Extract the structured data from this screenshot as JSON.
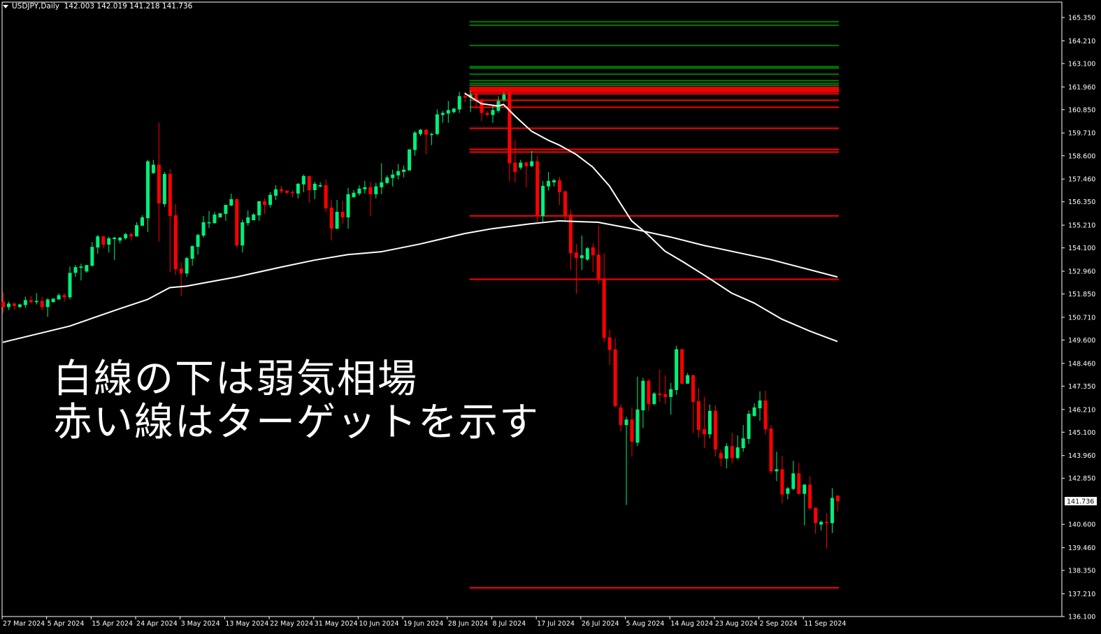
{
  "header": {
    "symbol": "USDJPY,Daily",
    "ohlc_text": "142.003 142.019 141.218 141.736"
  },
  "overlay": {
    "line1": "白線の下は弱気相場",
    "line2": "赤い線はターゲットを示す"
  },
  "colors": {
    "background": "#000000",
    "bull": "#00f07a",
    "bear": "#ff0000",
    "ma": "#ffffff",
    "level_green": "#007a00",
    "level_red": "#ff0000",
    "axis": "#ffffff"
  },
  "chart_data": {
    "type": "candlestick",
    "symbol": "USDJPY",
    "timeframe": "Daily",
    "ylim": [
      136.1,
      165.35
    ],
    "grid": false,
    "current_price": "141.736",
    "y_tick_labels": [
      "165.350",
      "164.210",
      "163.100",
      "161.960",
      "160.850",
      "159.710",
      "158.600",
      "157.460",
      "156.350",
      "155.210",
      "154.100",
      "152.960",
      "151.850",
      "150.710",
      "149.600",
      "148.460",
      "147.350",
      "146.210",
      "145.100",
      "143.960",
      "142.850",
      "140.600",
      "139.460",
      "138.350",
      "137.210",
      "136.100"
    ],
    "x_tick_labels": [
      "27 Mar 2024",
      "5 Apr 2024",
      "15 Apr 2024",
      "24 Apr 2024",
      "3 May 2024",
      "13 May 2024",
      "22 May 2024",
      "31 May 2024",
      "10 Jun 2024",
      "19 Jun 2024",
      "28 Jun 2024",
      "8 Jul 2024",
      "17 Jul 2024",
      "26 Jul 2024",
      "5 Aug 2024",
      "14 Aug 2024",
      "23 Aug 2024",
      "2 Sep 2024",
      "11 Sep 2024"
    ],
    "x_tick_every_bars": 8,
    "ohlc": [
      [
        151.48,
        151.92,
        150.93,
        151.21
      ],
      [
        151.21,
        151.48,
        151.07,
        151.38
      ],
      [
        151.38,
        151.44,
        151.07,
        151.27
      ],
      [
        151.21,
        151.38,
        151.17,
        151.34
      ],
      [
        151.31,
        151.72,
        151.17,
        151.55
      ],
      [
        151.55,
        151.75,
        151.38,
        151.45
      ],
      [
        151.45,
        151.89,
        151.34,
        151.51
      ],
      [
        151.51,
        151.72,
        151.04,
        151.21
      ],
      [
        151.21,
        151.65,
        150.73,
        151.58
      ],
      [
        151.45,
        151.65,
        151.45,
        151.62
      ],
      [
        151.58,
        151.89,
        151.58,
        151.79
      ],
      [
        151.79,
        151.89,
        151.48,
        151.69
      ],
      [
        151.69,
        153.19,
        151.58,
        152.88
      ],
      [
        152.88,
        153.26,
        152.68,
        153.16
      ],
      [
        153.13,
        153.33,
        152.51,
        153.19
      ],
      [
        152.95,
        153.26,
        152.88,
        153.26
      ],
      [
        153.23,
        154.39,
        153.19,
        154.15
      ],
      [
        154.12,
        154.73,
        153.81,
        154.66
      ],
      [
        154.66,
        154.7,
        154.08,
        154.26
      ],
      [
        154.26,
        154.64,
        153.87,
        154.57
      ],
      [
        154.53,
        154.64,
        153.5,
        154.6
      ],
      [
        154.46,
        154.64,
        154.32,
        154.6
      ],
      [
        154.57,
        154.84,
        154.5,
        154.77
      ],
      [
        154.77,
        154.84,
        154.46,
        154.66
      ],
      [
        154.66,
        155.35,
        154.66,
        155.21
      ],
      [
        155.18,
        155.69,
        155.18,
        155.59
      ],
      [
        155.55,
        158.4,
        154.87,
        158.33
      ],
      [
        157.75,
        158.4,
        157.71,
        158.16
      ],
      [
        158.16,
        160.21,
        154.42,
        156.27
      ],
      [
        156.24,
        157.81,
        156.1,
        157.71
      ],
      [
        157.71,
        157.95,
        152.92,
        155.66
      ],
      [
        155.69,
        156.24,
        152.78,
        153.05
      ],
      [
        153.09,
        153.4,
        151.75,
        152.85
      ],
      [
        152.85,
        153.67,
        152.68,
        153.6
      ],
      [
        153.57,
        154.22,
        153.23,
        154.19
      ],
      [
        154.15,
        154.8,
        153.77,
        154.73
      ],
      [
        154.7,
        155.66,
        154.6,
        155.35
      ],
      [
        155.31,
        155.9,
        155.07,
        155.35
      ],
      [
        155.31,
        155.86,
        155.28,
        155.73
      ],
      [
        155.59,
        155.79,
        155.59,
        155.79
      ],
      [
        155.76,
        156.2,
        155.42,
        156.2
      ],
      [
        156.17,
        156.75,
        156.14,
        156.48
      ],
      [
        156.48,
        156.51,
        154.12,
        154.22
      ],
      [
        154.22,
        155.49,
        153.87,
        155.35
      ],
      [
        155.31,
        155.93,
        155.18,
        155.59
      ],
      [
        155.45,
        155.79,
        155.45,
        155.73
      ],
      [
        155.69,
        156.38,
        155.42,
        156.38
      ],
      [
        156.38,
        156.51,
        155.76,
        156.2
      ],
      [
        156.2,
        156.82,
        156.07,
        156.69
      ],
      [
        156.65,
        157.16,
        156.44,
        156.96
      ],
      [
        156.96,
        157.13,
        156.75,
        156.86
      ],
      [
        156.89,
        156.92,
        156.72,
        156.79
      ],
      [
        156.82,
        156.92,
        156.58,
        156.79
      ],
      [
        156.75,
        157.27,
        156.51,
        157.23
      ],
      [
        157.2,
        157.68,
        156.82,
        157.61
      ],
      [
        157.61,
        157.61,
        156.3,
        156.92
      ],
      [
        156.92,
        157.33,
        156.48,
        157.23
      ],
      [
        157.1,
        157.3,
        157.06,
        157.16
      ],
      [
        157.16,
        157.44,
        155.86,
        156.03
      ],
      [
        156.07,
        156.44,
        154.46,
        155.04
      ],
      [
        155.04,
        156.44,
        155.01,
        155.86
      ],
      [
        155.86,
        156.41,
        155.28,
        155.59
      ],
      [
        155.59,
        157.03,
        155.04,
        156.72
      ],
      [
        156.58,
        156.92,
        156.55,
        156.79
      ],
      [
        156.75,
        157.16,
        156.65,
        156.99
      ],
      [
        156.96,
        157.37,
        156.75,
        157.06
      ],
      [
        157.06,
        157.33,
        155.66,
        156.72
      ],
      [
        156.72,
        157.27,
        156.51,
        157.1
      ],
      [
        157.06,
        158.23,
        156.72,
        157.3
      ],
      [
        157.27,
        157.64,
        157.2,
        157.54
      ],
      [
        157.51,
        157.92,
        157.1,
        157.68
      ],
      [
        157.64,
        158.19,
        157.44,
        157.85
      ],
      [
        157.81,
        158.12,
        157.54,
        157.92
      ],
      [
        157.88,
        158.91,
        157.88,
        158.91
      ],
      [
        158.88,
        159.8,
        158.6,
        159.73
      ],
      [
        159.66,
        159.9,
        159.56,
        159.87
      ],
      [
        159.87,
        159.9,
        158.67,
        159.63
      ],
      [
        159.63,
        159.73,
        159.12,
        159.66
      ],
      [
        159.66,
        160.86,
        159.6,
        160.62
      ],
      [
        160.59,
        160.79,
        160.21,
        160.69
      ],
      [
        160.66,
        161.27,
        160.21,
        160.83
      ],
      [
        160.73,
        160.93,
        160.66,
        160.9
      ],
      [
        160.86,
        161.72,
        160.69,
        161.51
      ],
      [
        161.51,
        161.72,
        161.21,
        161.44
      ],
      [
        161.44,
        161.79,
        160.73,
        161.58
      ],
      [
        161.65,
        161.72,
        161.0,
        161.31
      ],
      [
        161.31,
        161.41,
        160.28,
        160.69
      ],
      [
        160.69,
        160.79,
        160.52,
        160.59
      ],
      [
        160.59,
        161.07,
        160.21,
        160.83
      ],
      [
        160.79,
        161.51,
        160.69,
        161.27
      ],
      [
        161.34,
        161.72,
        161.24,
        161.58
      ],
      [
        161.69,
        161.69,
        157.37,
        158.23
      ],
      [
        158.26,
        159.36,
        157.3,
        157.81
      ],
      [
        158.02,
        158.4,
        157.92,
        158.26
      ],
      [
        158.26,
        158.33,
        157.06,
        158.09
      ],
      [
        158.09,
        158.84,
        158.05,
        158.33
      ],
      [
        158.33,
        158.6,
        155.35,
        155.66
      ],
      [
        155.66,
        157.37,
        155.35,
        157.13
      ],
      [
        157.1,
        157.81,
        156.89,
        157.37
      ],
      [
        157.3,
        157.47,
        157.1,
        157.4
      ],
      [
        157.4,
        157.57,
        156.2,
        156.82
      ],
      [
        156.86,
        156.89,
        155.45,
        155.69
      ],
      [
        155.73,
        155.97,
        153.02,
        153.84
      ],
      [
        153.87,
        154.29,
        151.86,
        153.6
      ],
      [
        153.6,
        154.7,
        153.02,
        153.74
      ],
      [
        153.53,
        154.15,
        153.46,
        154.08
      ],
      [
        154.12,
        154.32,
        152.92,
        153.74
      ],
      [
        153.77,
        155.18,
        152.33,
        152.57
      ],
      [
        152.61,
        153.84,
        149.49,
        149.7
      ],
      [
        149.73,
        150.11,
        148.39,
        149.12
      ],
      [
        149.15,
        149.7,
        146.31,
        146.38
      ],
      [
        146.31,
        146.48,
        145.14,
        145.45
      ],
      [
        145.45,
        145.86,
        141.55,
        145.72
      ],
      [
        145.72,
        146.31,
        143.91,
        144.63
      ],
      [
        144.59,
        147.81,
        144.42,
        146.21
      ],
      [
        146.17,
        147.75,
        145.31,
        147.61
      ],
      [
        147.61,
        147.71,
        146.14,
        146.48
      ],
      [
        146.48,
        147.06,
        146.41,
        146.99
      ],
      [
        146.99,
        148.16,
        146.58,
        146.92
      ],
      [
        146.96,
        147.88,
        146.48,
        146.82
      ],
      [
        146.82,
        147.51,
        145.96,
        147.2
      ],
      [
        147.16,
        149.32,
        146.92,
        149.15
      ],
      [
        149.15,
        149.18,
        147.44,
        147.47
      ],
      [
        147.47,
        147.99,
        147.47,
        147.88
      ],
      [
        147.88,
        147.92,
        145.07,
        146.58
      ],
      [
        146.61,
        147.27,
        144.83,
        145.21
      ],
      [
        145.24,
        146.82,
        144.32,
        145.0
      ],
      [
        145.0,
        146.45,
        144.8,
        146.14
      ],
      [
        146.14,
        146.41,
        143.91,
        144.25
      ],
      [
        144.08,
        144.25,
        143.43,
        143.81
      ],
      [
        143.81,
        144.56,
        143.33,
        144.42
      ],
      [
        144.42,
        145.07,
        143.57,
        143.84
      ],
      [
        143.84,
        144.94,
        143.77,
        144.36
      ],
      [
        144.32,
        145.45,
        144.15,
        144.8
      ],
      [
        144.77,
        146.17,
        144.53,
        146.0
      ],
      [
        145.89,
        146.51,
        145.86,
        146.31
      ],
      [
        146.27,
        147.09,
        145.66,
        146.65
      ],
      [
        146.65,
        147.13,
        144.97,
        145.24
      ],
      [
        145.28,
        145.45,
        143.05,
        143.19
      ],
      [
        143.19,
        144.15,
        142.71,
        143.29
      ],
      [
        143.29,
        143.94,
        141.62,
        142.06
      ],
      [
        142.09,
        142.43,
        141.82,
        142.36
      ],
      [
        142.33,
        143.7,
        142.27,
        143.09
      ],
      [
        143.09,
        143.6,
        142.06,
        142.09
      ],
      [
        142.09,
        142.57,
        140.55,
        142.54
      ],
      [
        142.54,
        142.95,
        141.28,
        141.38
      ],
      [
        141.41,
        141.45,
        140.14,
        140.66
      ],
      [
        140.59,
        140.79,
        140.31,
        140.72
      ],
      [
        140.72,
        141.14,
        139.42,
        140.66
      ],
      [
        140.66,
        142.37,
        140.18,
        141.89
      ],
      [
        142.003,
        142.019,
        141.218,
        141.736
      ]
    ],
    "moving_averages": [
      {
        "points": [
          [
            0,
            149.49
          ],
          [
            12,
            150.28
          ],
          [
            21,
            151.13
          ],
          [
            26,
            151.58
          ],
          [
            30,
            152.16
          ],
          [
            33,
            152.23
          ],
          [
            37,
            152.43
          ],
          [
            42,
            152.68
          ],
          [
            50,
            153.16
          ],
          [
            56,
            153.5
          ],
          [
            62,
            153.77
          ],
          [
            68,
            153.91
          ],
          [
            75,
            154.29
          ],
          [
            83,
            154.8
          ],
          [
            88,
            155.04
          ],
          [
            95,
            155.28
          ],
          [
            100,
            155.42
          ],
          [
            107,
            155.35
          ],
          [
            113,
            155.04
          ],
          [
            120,
            154.63
          ],
          [
            126,
            154.22
          ],
          [
            138,
            153.53
          ],
          [
            150,
            152.68
          ]
        ]
      },
      {
        "points": [
          [
            83,
            161.65
          ],
          [
            86,
            161.14
          ],
          [
            89,
            161.03
          ],
          [
            90,
            161.1
          ],
          [
            92,
            160.55
          ],
          [
            95,
            159.8
          ],
          [
            98,
            159.36
          ],
          [
            100,
            159.12
          ],
          [
            103,
            158.67
          ],
          [
            106,
            158.05
          ],
          [
            109,
            157.13
          ],
          [
            111,
            156.27
          ],
          [
            113,
            155.42
          ],
          [
            116,
            154.73
          ],
          [
            119,
            153.94
          ],
          [
            122,
            153.46
          ],
          [
            126,
            152.78
          ],
          [
            131,
            151.89
          ],
          [
            135,
            151.41
          ],
          [
            140,
            150.62
          ],
          [
            145,
            150.04
          ],
          [
            150,
            149.53
          ]
        ]
      }
    ],
    "levels": {
      "start_bar": 84,
      "end_bar": 150,
      "green": [
        165.14,
        164.97,
        163.98,
        162.95,
        162.88,
        162.58,
        162.27,
        162.13,
        162.03
      ],
      "red": [
        161.93,
        161.86,
        161.79,
        161.72,
        161.62,
        161.31,
        160.97,
        159.94,
        158.91,
        158.78,
        155.66,
        152.57,
        137.5
      ]
    }
  }
}
